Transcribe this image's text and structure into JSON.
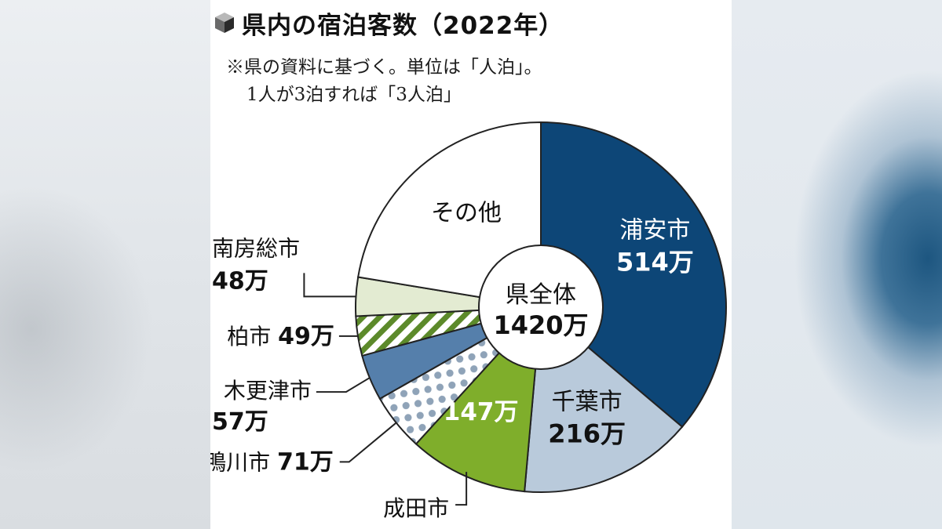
{
  "header": {
    "title": "県内の宿泊客数（2022年）",
    "note_line1": "※県の資料に基づく。単位は「人泊」。",
    "note_line2": "1人が3泊すれば「3人泊」"
  },
  "chart_data": {
    "type": "pie",
    "style": "donut",
    "unit": "万",
    "center_label": "県全体",
    "center_value": "1420万",
    "total": 1420,
    "series": [
      {
        "name": "浦安市",
        "value": 514,
        "value_label": "514万",
        "color": "#0d4677",
        "pattern": "solid",
        "label_position": "inside"
      },
      {
        "name": "千葉市",
        "value": 216,
        "value_label": "216万",
        "color": "#b9cadb",
        "pattern": "solid",
        "label_position": "inside"
      },
      {
        "name": "成田市",
        "value": 147,
        "value_label": "147万",
        "color": "#7fae2b",
        "pattern": "solid",
        "label_position": "value-inside-name-outside"
      },
      {
        "name": "鴨川市",
        "value": 71,
        "value_label": "71万",
        "color": "#8fa3b8",
        "pattern": "dots",
        "label_position": "outside"
      },
      {
        "name": "木更津市",
        "value": 57,
        "value_label": "57万",
        "color": "#557fab",
        "pattern": "solid",
        "label_position": "outside"
      },
      {
        "name": "柏市",
        "value": 49,
        "value_label": "49万",
        "color": "#5c8a2a",
        "pattern": "stripes",
        "label_position": "outside"
      },
      {
        "name": "南房総市",
        "value": 48,
        "value_label": "48万",
        "color": "#e3ebd2",
        "pattern": "solid",
        "label_position": "outside"
      },
      {
        "name": "その他",
        "value": 318,
        "value_label": "",
        "color": "#ffffff",
        "pattern": "solid",
        "label_position": "inside"
      }
    ]
  }
}
